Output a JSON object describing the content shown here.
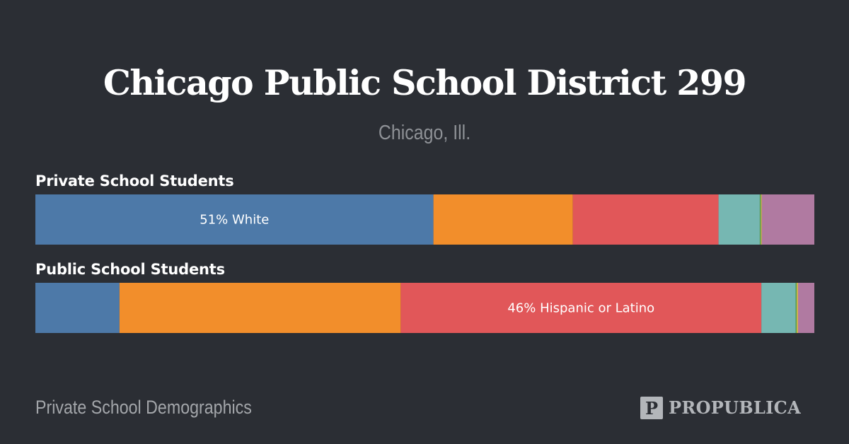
{
  "header": {
    "title": "Chicago Public School District 299",
    "subtitle": "Chicago, Ill."
  },
  "footer": {
    "caption": "Private School Demographics",
    "brand": "PROPUBLICA",
    "brand_mark_letter": "P"
  },
  "colors": {
    "background": "#2b2e34",
    "white": "#4d79a8",
    "black": "#f28e2b",
    "hispanic_or_latino": "#e15759",
    "asian": "#76b7b2",
    "native_american": "#59a14f",
    "pacific_islander": "#edc948",
    "two_or_more": "#b07aa1"
  },
  "chart_data": {
    "type": "bar",
    "orientation": "horizontal-stacked",
    "xlim": [
      0,
      100
    ],
    "rows": [
      {
        "label": "Private School Students",
        "segments": [
          {
            "color": "#4d79a8",
            "value": 51.1,
            "label": "51% White"
          },
          {
            "color": "#f28e2b",
            "value": 17.9,
            "label": ""
          },
          {
            "color": "#e15759",
            "value": 18.7,
            "label": ""
          },
          {
            "color": "#76b7b2",
            "value": 5.3,
            "label": ""
          },
          {
            "color": "#59a14f",
            "value": 0.15,
            "label": ""
          },
          {
            "color": "#edc948",
            "value": 0.1,
            "label": ""
          },
          {
            "color": "#b07aa1",
            "value": 6.75,
            "label": ""
          }
        ]
      },
      {
        "label": "Public School Students",
        "segments": [
          {
            "color": "#4d79a8",
            "value": 10.8,
            "label": ""
          },
          {
            "color": "#f28e2b",
            "value": 36.1,
            "label": ""
          },
          {
            "color": "#e15759",
            "value": 46.3,
            "label": "46% Hispanic or Latino"
          },
          {
            "color": "#76b7b2",
            "value": 4.4,
            "label": ""
          },
          {
            "color": "#59a14f",
            "value": 0.15,
            "label": ""
          },
          {
            "color": "#edc948",
            "value": 0.15,
            "label": ""
          },
          {
            "color": "#b07aa1",
            "value": 2.1,
            "label": ""
          }
        ]
      }
    ]
  }
}
